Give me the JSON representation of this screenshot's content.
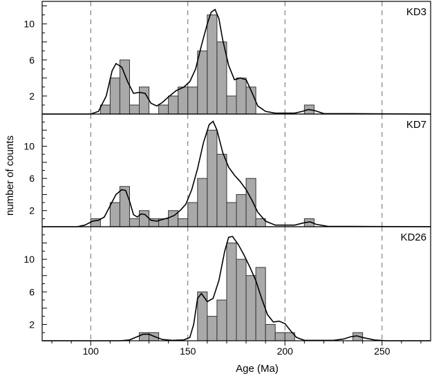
{
  "chart_data": {
    "type": "bar",
    "xlabel": "Age (Ma)",
    "ylabel": "number of counts",
    "xlim": [
      75,
      275
    ],
    "x_ticks": [
      100,
      150,
      200,
      250
    ],
    "y_ticks": [
      2,
      6,
      10
    ],
    "reference_lines": [
      100,
      150,
      200,
      250
    ],
    "bin_width": 5,
    "bar_color": "#a9a9a9",
    "panels": [
      {
        "name": "KD3",
        "ylim": [
          0,
          12.5
        ],
        "bins": [
          {
            "start": 105,
            "count": 1
          },
          {
            "start": 110,
            "count": 4
          },
          {
            "start": 115,
            "count": 6
          },
          {
            "start": 120,
            "count": 1
          },
          {
            "start": 125,
            "count": 3
          },
          {
            "start": 135,
            "count": 1
          },
          {
            "start": 140,
            "count": 2
          },
          {
            "start": 145,
            "count": 3
          },
          {
            "start": 150,
            "count": 3
          },
          {
            "start": 155,
            "count": 7
          },
          {
            "start": 160,
            "count": 11
          },
          {
            "start": 165,
            "count": 8
          },
          {
            "start": 170,
            "count": 2
          },
          {
            "start": 175,
            "count": 4
          },
          {
            "start": 180,
            "count": 3
          },
          {
            "start": 210,
            "count": 1
          }
        ],
        "curve": [
          [
            75,
            0
          ],
          [
            100,
            0
          ],
          [
            104,
            0.3
          ],
          [
            108,
            2.0
          ],
          [
            111,
            4.8
          ],
          [
            113,
            5.6
          ],
          [
            116,
            5.2
          ],
          [
            119,
            3.6
          ],
          [
            122,
            2.3
          ],
          [
            125,
            2.4
          ],
          [
            128,
            2.3
          ],
          [
            131,
            1.2
          ],
          [
            134,
            0.9
          ],
          [
            137,
            1.3
          ],
          [
            140,
            1.9
          ],
          [
            144,
            2.6
          ],
          [
            148,
            3.0
          ],
          [
            151,
            3.6
          ],
          [
            154,
            5.0
          ],
          [
            157,
            7.6
          ],
          [
            160,
            10.0
          ],
          [
            162,
            11.3
          ],
          [
            164,
            11.6
          ],
          [
            166,
            10.6
          ],
          [
            168,
            8.2
          ],
          [
            171,
            5.4
          ],
          [
            174,
            3.8
          ],
          [
            177,
            4.0
          ],
          [
            180,
            3.8
          ],
          [
            183,
            2.4
          ],
          [
            186,
            0.9
          ],
          [
            190,
            0.3
          ],
          [
            195,
            0.1
          ],
          [
            205,
            0.1
          ],
          [
            209,
            0.3
          ],
          [
            212,
            0.5
          ],
          [
            215,
            0.4
          ],
          [
            220,
            0.05
          ],
          [
            275,
            0
          ]
        ]
      },
      {
        "name": "KD7",
        "ylim": [
          0,
          14
        ],
        "bins": [
          {
            "start": 100,
            "count": 1
          },
          {
            "start": 110,
            "count": 3
          },
          {
            "start": 115,
            "count": 5
          },
          {
            "start": 120,
            "count": 1
          },
          {
            "start": 125,
            "count": 2
          },
          {
            "start": 130,
            "count": 1
          },
          {
            "start": 135,
            "count": 1
          },
          {
            "start": 140,
            "count": 2
          },
          {
            "start": 145,
            "count": 1
          },
          {
            "start": 150,
            "count": 3
          },
          {
            "start": 155,
            "count": 6
          },
          {
            "start": 160,
            "count": 12
          },
          {
            "start": 165,
            "count": 9
          },
          {
            "start": 170,
            "count": 3
          },
          {
            "start": 175,
            "count": 4
          },
          {
            "start": 180,
            "count": 6
          },
          {
            "start": 185,
            "count": 1
          },
          {
            "start": 210,
            "count": 1
          }
        ],
        "curve": [
          [
            75,
            0
          ],
          [
            93,
            0
          ],
          [
            97,
            0.2
          ],
          [
            101,
            0.7
          ],
          [
            104,
            0.8
          ],
          [
            107,
            1.2
          ],
          [
            110,
            2.6
          ],
          [
            113,
            4.0
          ],
          [
            116,
            4.6
          ],
          [
            118,
            4.5
          ],
          [
            120,
            3.2
          ],
          [
            122,
            1.5
          ],
          [
            124,
            1.2
          ],
          [
            126,
            1.6
          ],
          [
            128,
            1.5
          ],
          [
            131,
            0.8
          ],
          [
            134,
            0.7
          ],
          [
            137,
            0.9
          ],
          [
            140,
            1.1
          ],
          [
            143,
            1.4
          ],
          [
            146,
            2.0
          ],
          [
            149,
            2.8
          ],
          [
            152,
            4.6
          ],
          [
            155,
            7.2
          ],
          [
            158,
            10.4
          ],
          [
            161,
            12.7
          ],
          [
            163,
            13.1
          ],
          [
            165,
            12.0
          ],
          [
            168,
            9.2
          ],
          [
            171,
            7.4
          ],
          [
            174,
            6.4
          ],
          [
            177,
            5.6
          ],
          [
            180,
            4.6
          ],
          [
            183,
            3.3
          ],
          [
            186,
            1.8
          ],
          [
            190,
            0.7
          ],
          [
            195,
            0.2
          ],
          [
            205,
            0.2
          ],
          [
            210,
            0.5
          ],
          [
            213,
            0.6
          ],
          [
            216,
            0.3
          ],
          [
            222,
            0.05
          ],
          [
            275,
            0
          ]
        ]
      },
      {
        "name": "KD26",
        "ylim": [
          0,
          14
        ],
        "bins": [
          {
            "start": 125,
            "count": 1
          },
          {
            "start": 130,
            "count": 1
          },
          {
            "start": 155,
            "count": 6
          },
          {
            "start": 160,
            "count": 3
          },
          {
            "start": 165,
            "count": 5
          },
          {
            "start": 170,
            "count": 12
          },
          {
            "start": 175,
            "count": 10
          },
          {
            "start": 180,
            "count": 8
          },
          {
            "start": 185,
            "count": 9
          },
          {
            "start": 190,
            "count": 2
          },
          {
            "start": 195,
            "count": 1
          },
          {
            "start": 200,
            "count": 1
          },
          {
            "start": 235,
            "count": 1
          }
        ],
        "curve": [
          [
            75,
            0
          ],
          [
            115,
            0
          ],
          [
            120,
            0.1
          ],
          [
            124,
            0.5
          ],
          [
            127,
            0.8
          ],
          [
            130,
            0.8
          ],
          [
            133,
            0.5
          ],
          [
            137,
            0.15
          ],
          [
            142,
            0.05
          ],
          [
            148,
            0.1
          ],
          [
            151,
            0.4
          ],
          [
            153,
            2.0
          ],
          [
            155,
            5.2
          ],
          [
            157,
            5.8
          ],
          [
            160,
            4.8
          ],
          [
            163,
            5.2
          ],
          [
            166,
            7.4
          ],
          [
            169,
            11.0
          ],
          [
            171,
            12.7
          ],
          [
            173,
            12.8
          ],
          [
            176,
            11.8
          ],
          [
            179,
            10.5
          ],
          [
            182,
            9.0
          ],
          [
            185,
            7.4
          ],
          [
            188,
            5.2
          ],
          [
            191,
            3.2
          ],
          [
            194,
            2.3
          ],
          [
            197,
            2.4
          ],
          [
            200,
            2.1
          ],
          [
            203,
            1.2
          ],
          [
            206,
            0.4
          ],
          [
            210,
            0.05
          ],
          [
            225,
            0.05
          ],
          [
            230,
            0.2
          ],
          [
            234,
            0.5
          ],
          [
            237,
            0.6
          ],
          [
            240,
            0.4
          ],
          [
            246,
            0.1
          ],
          [
            252,
            0
          ],
          [
            275,
            0
          ]
        ]
      }
    ]
  }
}
